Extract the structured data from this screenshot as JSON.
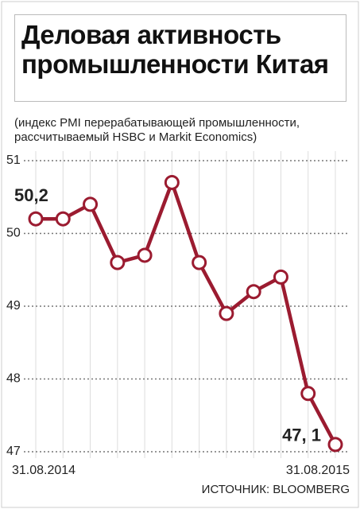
{
  "chart_data": {
    "type": "line",
    "title": "Деловая активность промышленности Китая",
    "subtitle": "(индекс PMI перерабатывающей промышленности, рассчитываемый HSBC и Markit Economics)",
    "source": "ИСТОЧНИК: BLOOMBERG",
    "categories": [
      "31.08.2014",
      null,
      null,
      null,
      null,
      null,
      null,
      null,
      null,
      null,
      null,
      "31.08.2015"
    ],
    "series": [
      {
        "name": "PMI",
        "color": "#9b1b30",
        "values": [
          50.2,
          50.2,
          50.4,
          49.6,
          49.7,
          50.7,
          49.6,
          48.9,
          49.2,
          49.4,
          47.8,
          47.1
        ],
        "value_labels": [
          "50,2",
          null,
          null,
          null,
          null,
          null,
          null,
          null,
          null,
          null,
          null,
          "47, 1"
        ]
      }
    ],
    "ylim": [
      47,
      51
    ],
    "yticks": [
      47,
      48,
      49,
      50,
      51
    ],
    "grid": true
  }
}
